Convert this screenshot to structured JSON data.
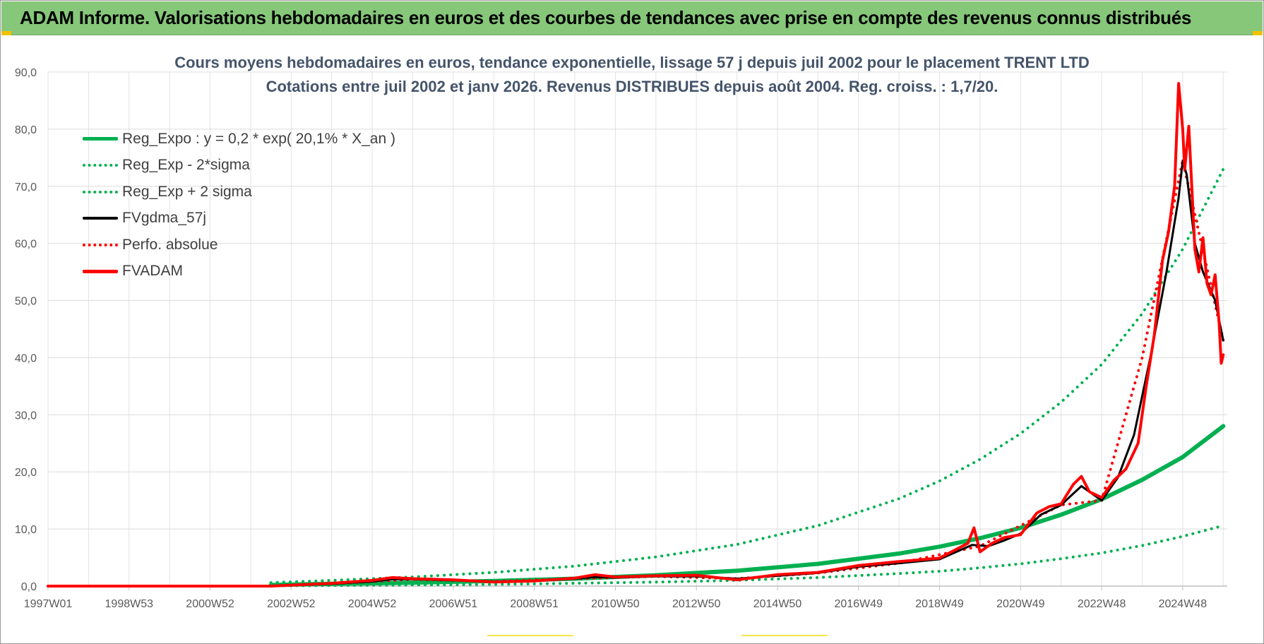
{
  "banner": {
    "title": "ADAM Informe. Valorisations hebdomadaires en euros et des courbes de tendances avec prise en compte des revenus connus distribués"
  },
  "chart_data": {
    "type": "line",
    "title": "Cours moyens hebdomadaires en euros, tendance exponentielle, lissage 57 j depuis juil 2002 pour le placement TRENT LTD",
    "subtitle": "Cotations entre juil 2002 et janv 2026. Revenus DISTRIBUES depuis août 2004. Reg. croiss. : 1,7/20.",
    "xlabel": "",
    "ylabel": "",
    "ylim": [
      0,
      90
    ],
    "xlim": [
      1997.0,
      2026.1
    ],
    "grid": true,
    "legend_position": "top-left",
    "y_ticks": [
      "0,0",
      "10,0",
      "20,0",
      "30,0",
      "40,0",
      "50,0",
      "60,0",
      "70,0",
      "80,0",
      "90,0"
    ],
    "x_ticks": [
      {
        "label": "1997W01",
        "x": 1997.0
      },
      {
        "label": "1998W53",
        "x": 1999.0
      },
      {
        "label": "2000W52",
        "x": 2001.0
      },
      {
        "label": "2002W52",
        "x": 2003.0
      },
      {
        "label": "2004W52",
        "x": 2005.0
      },
      {
        "label": "2006W51",
        "x": 2007.0
      },
      {
        "label": "2008W51",
        "x": 2009.0
      },
      {
        "label": "2010W50",
        "x": 2011.0
      },
      {
        "label": "2012W50",
        "x": 2013.0
      },
      {
        "label": "2014W50",
        "x": 2015.0
      },
      {
        "label": "2016W49",
        "x": 2017.0
      },
      {
        "label": "2018W49",
        "x": 2019.0
      },
      {
        "label": "2020W49",
        "x": 2021.0
      },
      {
        "label": "2022W48",
        "x": 2023.0
      },
      {
        "label": "2024W48",
        "x": 2025.0
      }
    ],
    "series": [
      {
        "name": "Reg_Expo : y = 0,2 * exp( 20,1% *  X_an )",
        "color": "#00b050",
        "style": "solid",
        "x": [
          2002.5,
          2004,
          2006,
          2008,
          2010,
          2012,
          2014,
          2016,
          2018,
          2019,
          2020,
          2021,
          2022,
          2023,
          2024,
          2025,
          2026
        ],
        "values": [
          0.2,
          0.4,
          0.6,
          0.9,
          1.3,
          1.9,
          2.7,
          3.9,
          5.7,
          6.9,
          8.4,
          10.2,
          12.5,
          15.2,
          18.6,
          22.6,
          28.0
        ]
      },
      {
        "name": "Reg_Exp - 2*sigma",
        "color": "#00b050",
        "style": "dotted",
        "x": [
          2002.5,
          2004,
          2006,
          2008,
          2010,
          2012,
          2014,
          2016,
          2018,
          2019,
          2020,
          2021,
          2022,
          2023,
          2024,
          2025,
          2026
        ],
        "values": [
          0.05,
          0.1,
          0.2,
          0.3,
          0.5,
          0.7,
          1.0,
          1.5,
          2.2,
          2.6,
          3.2,
          3.9,
          4.8,
          5.8,
          7.1,
          8.7,
          10.6
        ]
      },
      {
        "name": "Reg_Exp + 2 sigma",
        "color": "#00b050",
        "style": "dotted",
        "x": [
          2002.5,
          2004,
          2006,
          2008,
          2010,
          2012,
          2014,
          2016,
          2018,
          2019,
          2020,
          2021,
          2022,
          2023,
          2024,
          2025,
          2026
        ],
        "values": [
          0.6,
          1.0,
          1.6,
          2.4,
          3.5,
          5.1,
          7.3,
          10.6,
          15.3,
          18.4,
          22.2,
          26.7,
          32.2,
          38.8,
          47.7,
          59.0,
          73.0
        ]
      },
      {
        "name": "FVgdma_57j",
        "color": "#000000",
        "style": "solid",
        "x": [
          1997.0,
          2002.5,
          2004,
          2005,
          2005.5,
          2006,
          2007,
          2008,
          2009,
          2010,
          2010.5,
          2011,
          2012,
          2013,
          2014,
          2015,
          2016,
          2017,
          2018,
          2019,
          2019.8,
          2020.2,
          2020.6,
          2021,
          2021.5,
          2022,
          2022.5,
          2023,
          2023.4,
          2023.8,
          2024.2,
          2024.6,
          2024.9,
          2025.0,
          2025.1,
          2025.3,
          2025.5,
          2025.8,
          2026.0
        ],
        "values": [
          0,
          0,
          0.4,
          0.8,
          1.2,
          1.2,
          1.0,
          0.8,
          0.9,
          1.3,
          1.6,
          1.5,
          1.7,
          1.7,
          1.3,
          1.8,
          2.3,
          3.4,
          4.0,
          4.7,
          7.2,
          7.0,
          8.0,
          9.2,
          12.5,
          14.2,
          17.5,
          15.0,
          19.0,
          26.5,
          40.0,
          55.0,
          68.0,
          74.5,
          72.0,
          60.0,
          55.0,
          50.0,
          43.0
        ]
      },
      {
        "name": "Perfo. absolue",
        "color": "#ff0000",
        "style": "dotted",
        "x": [
          1997.0,
          2002.5,
          2004,
          2006,
          2008,
          2010,
          2012,
          2014,
          2016,
          2018,
          2020,
          2022,
          2023,
          2024,
          2025,
          2026
        ],
        "values": [
          0,
          0,
          0.4,
          1.2,
          0.8,
          1.3,
          1.7,
          1.3,
          2.3,
          4.0,
          7.0,
          14.2,
          15.0,
          40.0,
          74.5,
          43.0
        ]
      },
      {
        "name": "FVADAM",
        "color": "#ff0000",
        "style": "solid",
        "x": [
          1997.0,
          2002.5,
          2004,
          2005,
          2005.5,
          2006,
          2007,
          2008,
          2009,
          2010,
          2010.5,
          2011,
          2012,
          2013,
          2014,
          2015,
          2016,
          2017,
          2018,
          2019,
          2019.7,
          2019.85,
          2020.0,
          2020.3,
          2020.6,
          2021.0,
          2021.4,
          2021.7,
          2022.0,
          2022.3,
          2022.5,
          2022.7,
          2023.0,
          2023.3,
          2023.6,
          2023.9,
          2024.1,
          2024.3,
          2024.5,
          2024.65,
          2024.8,
          2024.9,
          2025.0,
          2025.05,
          2025.15,
          2025.3,
          2025.4,
          2025.5,
          2025.6,
          2025.7,
          2025.8,
          2025.9,
          2025.95,
          2026.0
        ],
        "values": [
          0,
          0,
          0.5,
          1.0,
          1.5,
          1.3,
          1.1,
          0.7,
          0.9,
          1.4,
          2.0,
          1.6,
          1.8,
          1.9,
          1.1,
          2.0,
          2.4,
          3.6,
          4.3,
          4.9,
          7.5,
          10.2,
          6.0,
          7.5,
          8.5,
          9.0,
          12.8,
          13.9,
          14.4,
          17.8,
          19.2,
          16.5,
          15.5,
          18.5,
          20.5,
          25.0,
          35.0,
          44.0,
          57.0,
          62.0,
          70.0,
          88.0,
          80.0,
          73.0,
          80.5,
          59.0,
          55.0,
          61.0,
          53.0,
          51.0,
          54.5,
          46.0,
          39.0,
          40.5
        ]
      }
    ]
  }
}
